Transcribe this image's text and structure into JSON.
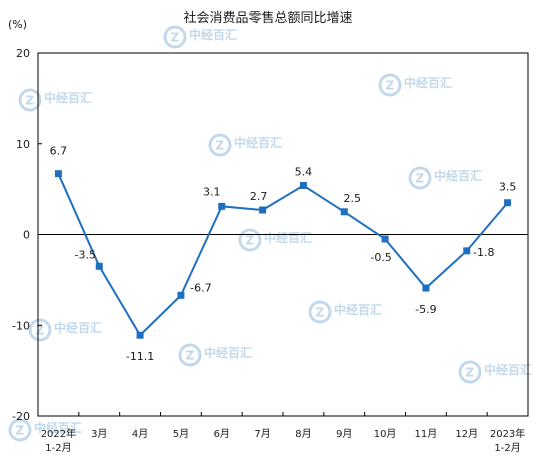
{
  "chart_data": {
    "type": "line",
    "title": "社会消费品零售总额同比增速",
    "unit": "(%)",
    "categories": [
      [
        "2022年",
        "1-2月"
      ],
      [
        "3月"
      ],
      [
        "4月"
      ],
      [
        "5月"
      ],
      [
        "6月"
      ],
      [
        "7月"
      ],
      [
        "8月"
      ],
      [
        "9月"
      ],
      [
        "10月"
      ],
      [
        "11月"
      ],
      [
        "12月"
      ],
      [
        "2023年",
        "1-2月"
      ]
    ],
    "values": [
      6.7,
      -3.5,
      -11.1,
      -6.7,
      3.1,
      2.7,
      5.4,
      2.5,
      -0.5,
      -5.9,
      -1.8,
      3.5
    ],
    "data_labels": [
      "6.7",
      "-3.5",
      "-11.1",
      "-6.7",
      "3.1",
      "2.7",
      "5.4",
      "2.5",
      "-0.5",
      "-5.9",
      "-1.8",
      "3.5"
    ],
    "y_ticks": [
      "20",
      "10",
      "0",
      "-10",
      "-20"
    ],
    "ylim": [
      -20,
      20
    ],
    "grid": false,
    "legend": "none",
    "colors": {
      "line": "#1f6fc1",
      "marker": "#1f6fc1",
      "axis": "#000000",
      "watermark": "#b9d3e8"
    }
  },
  "watermark": {
    "text": "中经百汇"
  }
}
